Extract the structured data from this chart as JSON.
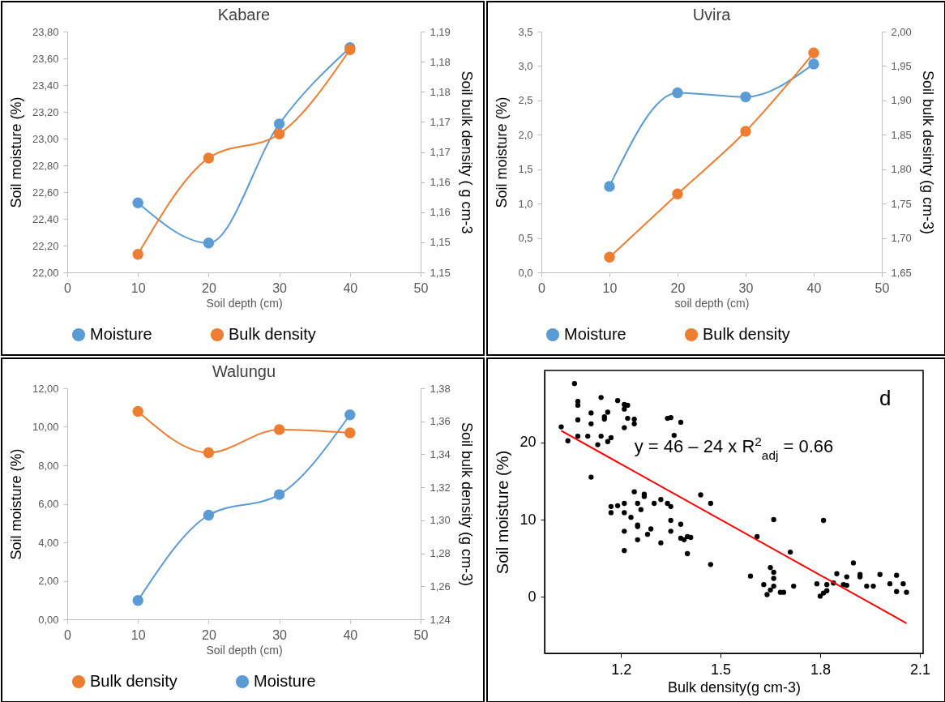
{
  "chart_data": [
    {
      "type": "line",
      "title": "Kabare",
      "xlabel": "Soil depth (cm)",
      "ylabel": "Soil  moisture (%)",
      "y2label": "Soil bulk density ( g cm-3",
      "x": [
        10,
        20,
        30,
        40
      ],
      "marker": "circle",
      "line_style": "solid",
      "legend": "bottom",
      "xlim": [
        0,
        50
      ],
      "xticks": [
        0,
        10,
        20,
        30,
        40,
        50
      ],
      "ylim": [
        22,
        23.8
      ],
      "yticks": [
        {
          "value": 22,
          "label": "22,00"
        },
        {
          "value": 22.2,
          "label": "22,20"
        },
        {
          "value": 22.4,
          "label": "22,40"
        },
        {
          "value": 22.6,
          "label": "22,60"
        },
        {
          "value": 22.8,
          "label": "22,80"
        },
        {
          "value": 23,
          "label": "23,00"
        },
        {
          "value": 23.2,
          "label": "23,20"
        },
        {
          "value": 23.4,
          "label": "23,40"
        },
        {
          "value": 23.6,
          "label": "23,60"
        },
        {
          "value": 23.8,
          "label": "23,80"
        }
      ],
      "y2lim": [
        1.145,
        1.185
      ],
      "y2ticks": [
        {
          "value": 1.145,
          "label": "1,15"
        },
        {
          "value": 1.15,
          "label": "1,15"
        },
        {
          "value": 1.155,
          "label": "1,16"
        },
        {
          "value": 1.16,
          "label": "1,16"
        },
        {
          "value": 1.165,
          "label": "1,17"
        },
        {
          "value": 1.17,
          "label": "1,17"
        },
        {
          "value": 1.175,
          "label": "1,18"
        },
        {
          "value": 1.18,
          "label": "1,18"
        },
        {
          "value": 1.185,
          "label": "1,19"
        }
      ],
      "series": [
        {
          "name": "Moisture",
          "color": "#5b9bd5",
          "values": [
            22.52,
            22.22,
            23.11,
            23.68
          ]
        },
        {
          "name": "Bulk density",
          "color": "#ed7d31",
          "axis": "y2",
          "values": [
            1.148,
            1.164,
            1.168,
            1.182
          ]
        }
      ]
    },
    {
      "type": "line",
      "title": "Uvira",
      "xlabel": "soil depth (cm)",
      "ylabel": "Soil moisture (%)",
      "y2label": "Soil bulk desinty (g cm-3)",
      "x": [
        10,
        20,
        30,
        40
      ],
      "marker": "circle",
      "line_style": "solid",
      "legend": "bottom",
      "xlim": [
        0,
        50
      ],
      "xticks": [
        0,
        10,
        20,
        30,
        40,
        50
      ],
      "ylim": [
        0,
        3.5
      ],
      "yticks": [
        {
          "value": 0,
          "label": "0,0"
        },
        {
          "value": 0.5,
          "label": "0,5"
        },
        {
          "value": 1,
          "label": "1,0"
        },
        {
          "value": 1.5,
          "label": "1,5"
        },
        {
          "value": 2,
          "label": "2,0"
        },
        {
          "value": 2.5,
          "label": "2,5"
        },
        {
          "value": 3,
          "label": "3,0"
        },
        {
          "value": 3.5,
          "label": "3,5"
        }
      ],
      "y2lim": [
        1.65,
        2
      ],
      "y2ticks": [
        {
          "value": 1.65,
          "label": "1,65"
        },
        {
          "value": 1.7,
          "label": "1,70"
        },
        {
          "value": 1.75,
          "label": "1,75"
        },
        {
          "value": 1.8,
          "label": "1,80"
        },
        {
          "value": 1.85,
          "label": "1,85"
        },
        {
          "value": 1.9,
          "label": "1,90"
        },
        {
          "value": 1.95,
          "label": "1,95"
        },
        {
          "value": 2,
          "label": "2,00"
        }
      ],
      "series": [
        {
          "name": "Moisture",
          "color": "#5b9bd5",
          "values": [
            1.25,
            2.61,
            2.55,
            3.03
          ]
        },
        {
          "name": "Bulk density",
          "color": "#ed7d31",
          "axis": "y2",
          "values": [
            1.672,
            1.764,
            1.855,
            1.969
          ]
        }
      ]
    },
    {
      "type": "line",
      "title": "Walungu",
      "xlabel": "Soil depth (cm)",
      "ylabel": "Soil moisture (%)",
      "y2label": "Soil bulk density (g cm-3)",
      "x": [
        10,
        20,
        30,
        40
      ],
      "marker": "circle",
      "line_style": "solid",
      "legend": "bottom",
      "xlim": [
        0,
        50
      ],
      "xticks": [
        0,
        10,
        20,
        30,
        40,
        50
      ],
      "ylim": [
        0,
        12
      ],
      "yticks": [
        {
          "value": 0,
          "label": "0,00"
        },
        {
          "value": 2,
          "label": "2,00"
        },
        {
          "value": 4,
          "label": "4,00"
        },
        {
          "value": 6,
          "label": "6,00"
        },
        {
          "value": 8,
          "label": "8,00"
        },
        {
          "value": 10,
          "label": "10,00"
        },
        {
          "value": 12,
          "label": "12,00"
        }
      ],
      "y2lim": [
        1.24,
        1.38
      ],
      "y2ticks": [
        {
          "value": 1.24,
          "label": "1,24"
        },
        {
          "value": 1.26,
          "label": "1,26"
        },
        {
          "value": 1.28,
          "label": "1,28"
        },
        {
          "value": 1.3,
          "label": "1,30"
        },
        {
          "value": 1.32,
          "label": "1,32"
        },
        {
          "value": 1.34,
          "label": "1,34"
        },
        {
          "value": 1.36,
          "label": "1,36"
        },
        {
          "value": 1.38,
          "label": "1,38"
        }
      ],
      "series": [
        {
          "name": "Bulk density",
          "color": "#ed7d31",
          "axis": "y2",
          "values": [
            1.366,
            1.341,
            1.355,
            1.353
          ]
        },
        {
          "name": "Moisture",
          "color": "#5b9bd5",
          "values": [
            0.98,
            5.41,
            6.48,
            10.62
          ]
        }
      ]
    },
    {
      "type": "scatter",
      "xlabel": "Bulk density(g cm-3)",
      "ylabel": "Soil moisture (%)",
      "marker": "circle",
      "xlim": [
        0.97,
        2.11
      ],
      "xticks": [
        1.2,
        1.5,
        1.8,
        2.1
      ],
      "ylim": [
        -7.3,
        29.3
      ],
      "yticks": [
        0,
        10,
        20
      ],
      "annotations": [
        "d",
        "y = 46 – 24 x    R$^{2}$$_{adj}$ = 0.66"
      ],
      "series": [
        {
          "color": "#000000",
          "x": [
            1.02,
            1.04,
            1.06,
            1.07,
            1.07,
            1.07,
            1.07,
            1.1,
            1.11,
            1.11,
            1.13,
            1.11,
            1.14,
            1.14,
            1.15,
            1.15,
            1.16,
            1.16,
            1.17,
            1.19,
            1.21,
            1.21,
            1.22,
            1.22,
            1.21,
            1.24,
            1.24,
            1.34,
            1.35,
            1.36,
            1.38,
            1.17,
            1.17,
            1.19,
            1.21,
            1.21,
            1.23,
            1.21,
            1.21,
            1.24,
            1.25,
            1.26,
            1.27,
            1.27,
            1.25,
            1.25,
            1.25,
            1.28,
            1.29,
            1.3,
            1.32,
            1.32,
            1.34,
            1.35,
            1.35,
            1.35,
            1.38,
            1.38,
            1.39,
            1.4,
            1.41,
            1.4,
            1.44,
            1.47,
            1.47,
            1.59,
            1.61,
            1.66,
            1.81,
            1.65,
            1.66,
            1.66,
            1.63,
            1.65,
            1.64,
            1.66,
            1.68,
            1.69,
            1.71,
            1.72,
            1.79,
            1.8,
            1.82,
            1.82,
            1.81,
            1.84,
            1.85,
            1.87,
            1.88,
            1.88,
            1.9,
            1.92,
            1.92,
            1.94,
            1.96,
            1.98,
            2.01,
            2.03,
            2.03,
            2.05,
            2.06
          ],
          "values": [
            22.0,
            20.2,
            27.6,
            24.8,
            25.3,
            22.9,
            20.8,
            20.8,
            23.8,
            22.4,
            19.7,
            15.5,
            25.8,
            20.8,
            23.0,
            23.3,
            23.9,
            20.1,
            20.6,
            25.4,
            24.9,
            24.3,
            24.8,
            23.1,
            21.9,
            23.0,
            22.4,
            23.1,
            23.2,
            20.9,
            22.6,
            11.7,
            10.9,
            11.8,
            12.1,
            10.9,
            10.3,
            8.5,
            6.0,
            13.6,
            12.1,
            11.3,
            13.3,
            13.0,
            9.1,
            9.3,
            7.4,
            8.1,
            8.8,
            12.1,
            12.6,
            7.0,
            12.1,
            11.7,
            9.9,
            8.5,
            9.4,
            7.6,
            7.4,
            7.8,
            7.7,
            5.6,
            13.2,
            12.1,
            4.2,
            2.7,
            7.8,
            10.0,
            9.9,
            3.8,
            3.2,
            2.4,
            1.6,
            0.9,
            0.3,
            1.4,
            0.6,
            0.6,
            5.8,
            1.4,
            1.7,
            0.1,
            1.6,
            0.8,
            0.5,
            1.8,
            3.0,
            1.6,
            2.6,
            1.5,
            4.4,
            2.9,
            2.6,
            1.4,
            1.4,
            2.9,
            1.7,
            2.8,
            0.7,
            1.7,
            0.6
          ]
        },
        {
          "type": "line",
          "marker": "none",
          "color": "#ff0000",
          "x": [
            1.02,
            2.06
          ],
          "values": [
            21.5,
            -3.4
          ]
        }
      ]
    }
  ]
}
